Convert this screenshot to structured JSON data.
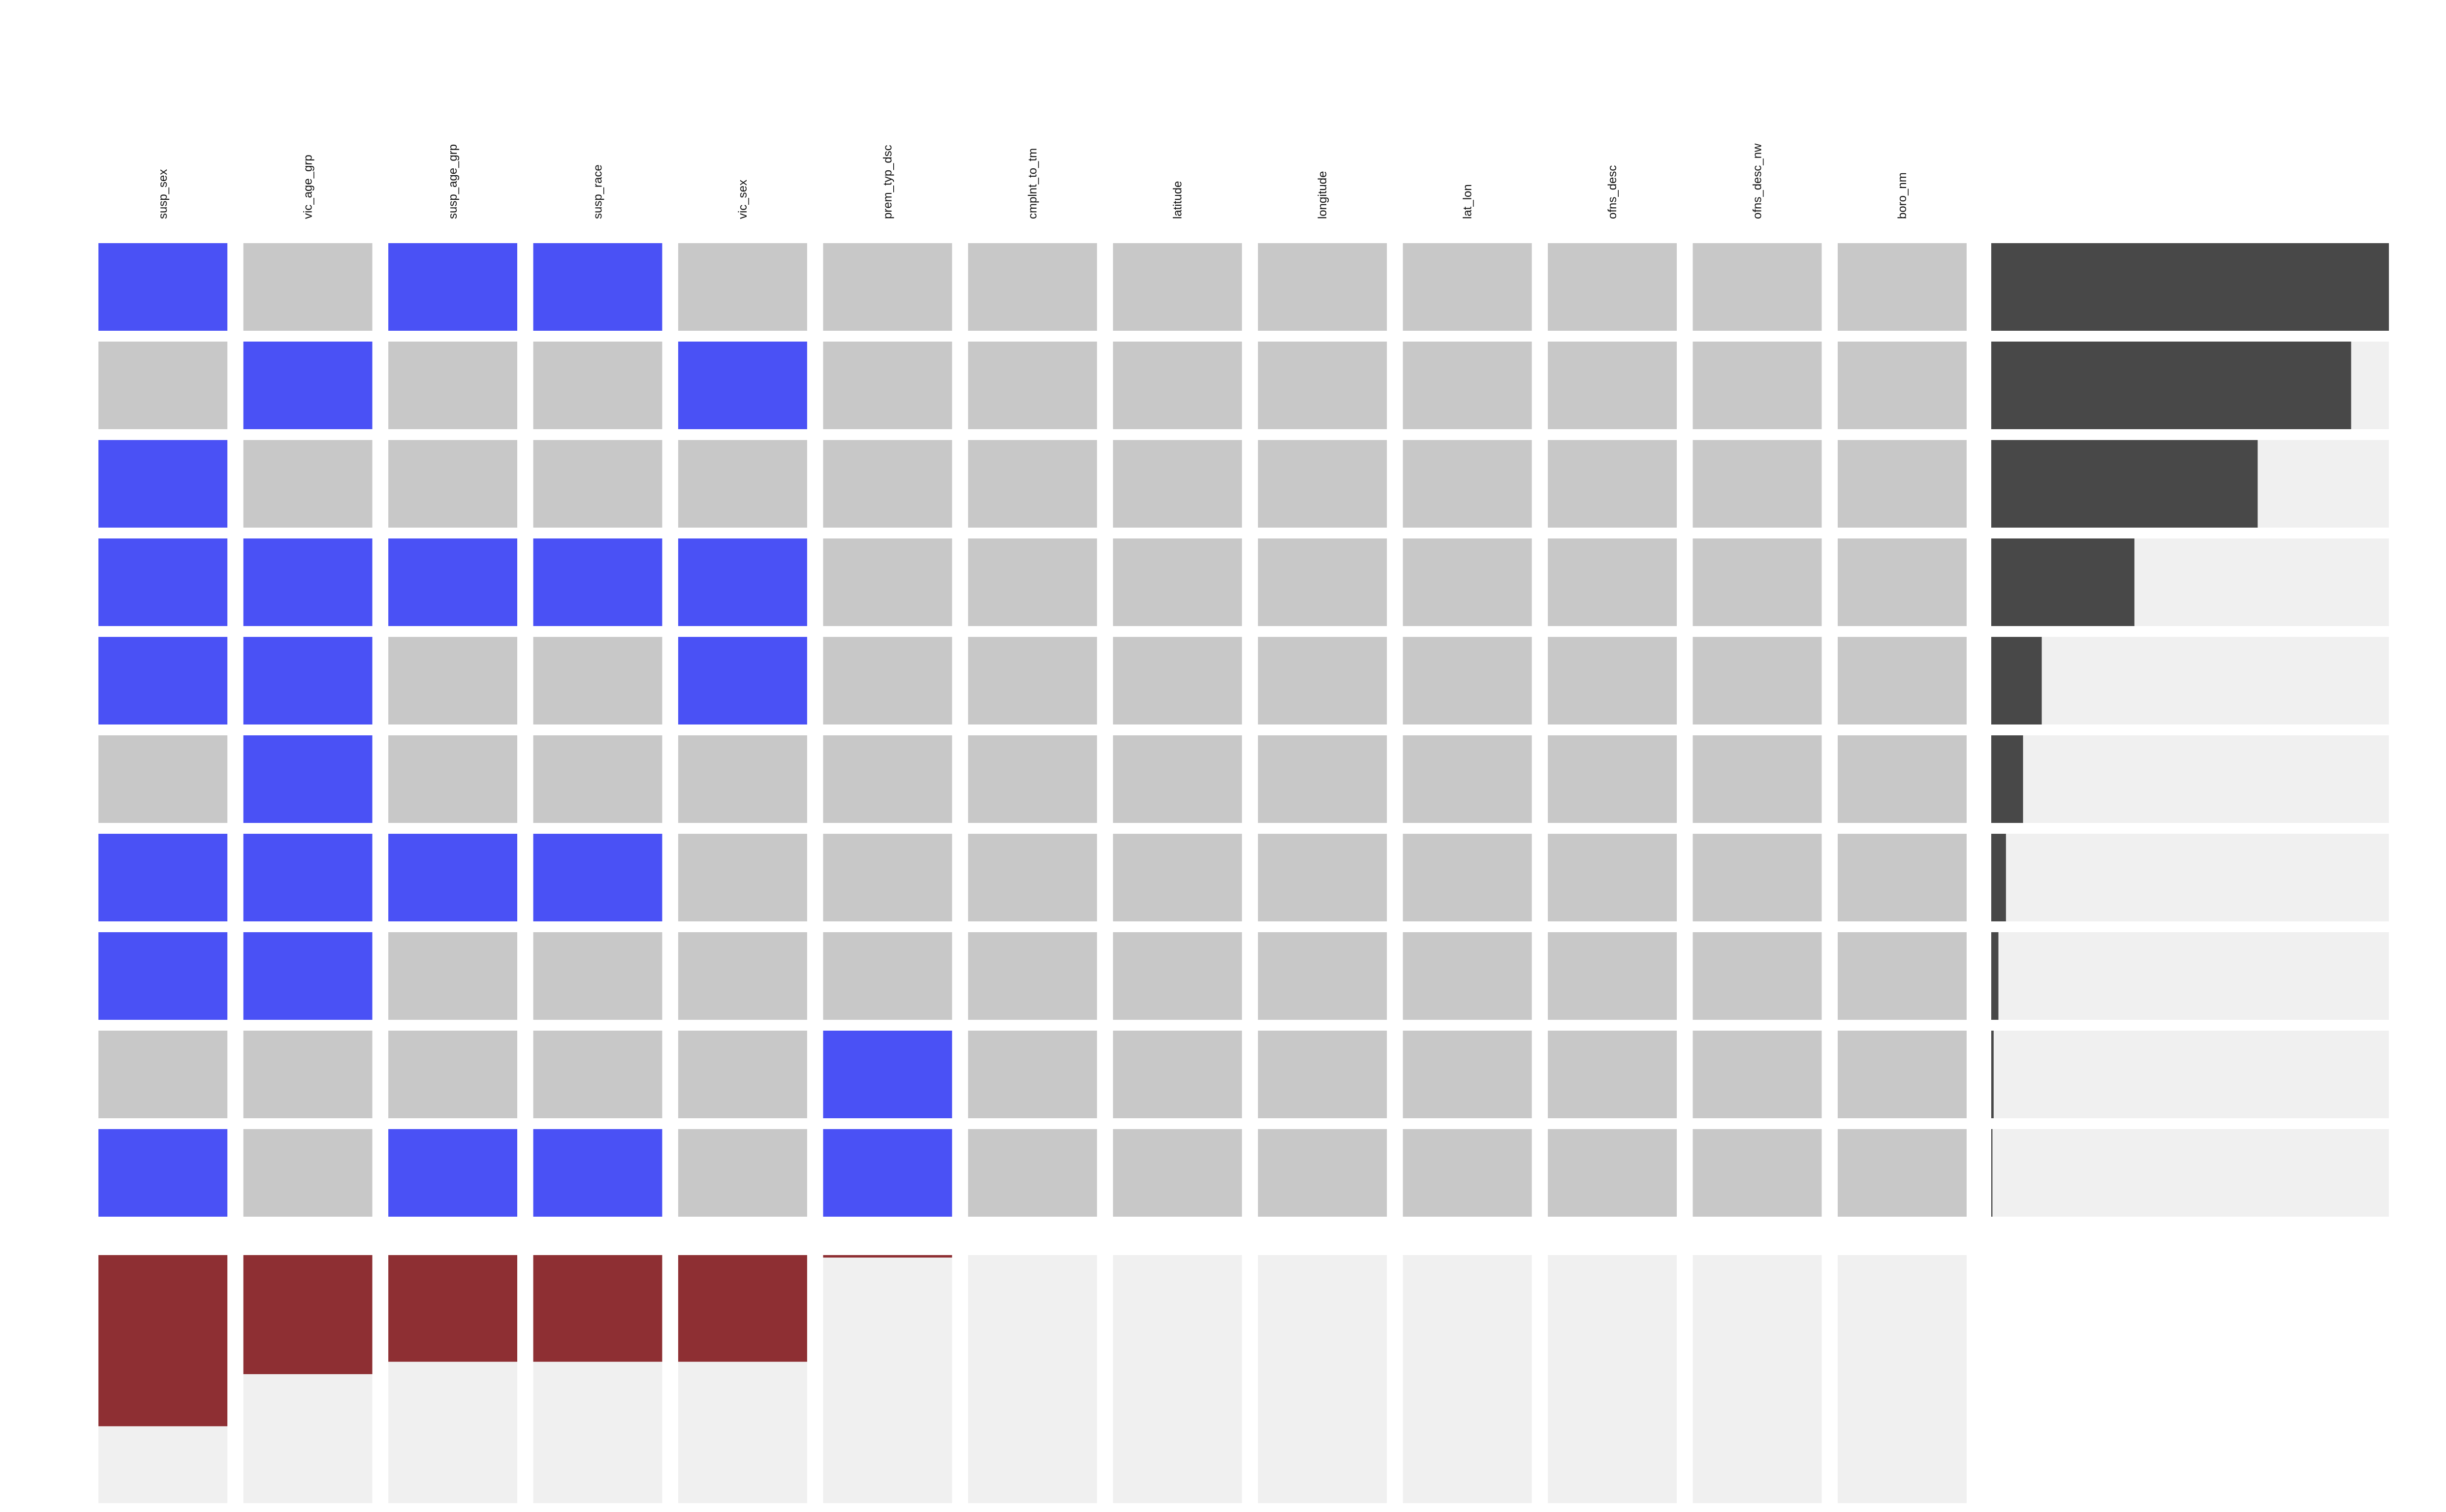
{
  "chart_data": {
    "type": "heatmap",
    "columns": [
      "susp_sex",
      "vic_age_grp",
      "susp_age_grp",
      "susp_race",
      "vic_sex",
      "prem_typ_dsc",
      "cmplnt_to_tm",
      "latitude",
      "longitude",
      "lat_lon",
      "ofns_desc",
      "ofns_desc_nw",
      "boro_nm"
    ],
    "matrix": [
      [
        1,
        0,
        1,
        1,
        0,
        0,
        0,
        0,
        0,
        0,
        0,
        0,
        0
      ],
      [
        0,
        1,
        0,
        0,
        1,
        0,
        0,
        0,
        0,
        0,
        0,
        0,
        0
      ],
      [
        1,
        0,
        0,
        0,
        0,
        0,
        0,
        0,
        0,
        0,
        0,
        0,
        0
      ],
      [
        1,
        1,
        1,
        1,
        1,
        0,
        0,
        0,
        0,
        0,
        0,
        0,
        0
      ],
      [
        1,
        1,
        0,
        0,
        1,
        0,
        0,
        0,
        0,
        0,
        0,
        0,
        0
      ],
      [
        0,
        1,
        0,
        0,
        0,
        0,
        0,
        0,
        0,
        0,
        0,
        0,
        0
      ],
      [
        1,
        1,
        1,
        1,
        0,
        0,
        0,
        0,
        0,
        0,
        0,
        0,
        0
      ],
      [
        1,
        1,
        0,
        0,
        0,
        0,
        0,
        0,
        0,
        0,
        0,
        0,
        0
      ],
      [
        0,
        0,
        0,
        0,
        0,
        1,
        0,
        0,
        0,
        0,
        0,
        0,
        0
      ],
      [
        1,
        0,
        1,
        1,
        0,
        1,
        0,
        0,
        0,
        0,
        0,
        0,
        0
      ]
    ],
    "row_fraction": [
      1.0,
      0.905,
      0.67,
      0.36,
      0.127,
      0.08,
      0.037,
      0.018,
      0.006,
      0.003
    ],
    "column_fraction": [
      0.69,
      0.48,
      0.43,
      0.43,
      0.43,
      0.01,
      0,
      0,
      0,
      0,
      0,
      0,
      0
    ],
    "colors": {
      "missing": "#4a51f5",
      "present": "#c8c8c8",
      "bar": "#484848",
      "bar_track": "#f0f0f0",
      "column_bar": "#8e2f33",
      "column_track": "#f0f0f0"
    }
  }
}
